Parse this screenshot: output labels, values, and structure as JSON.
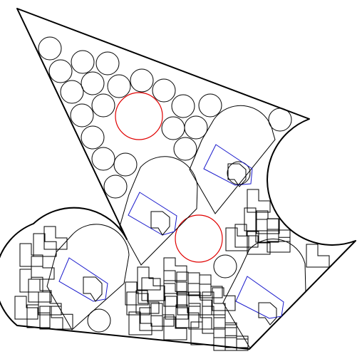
{
  "figure": {
    "description_kind": "geometric packing diagram",
    "colors": {
      "outline": "#000000",
      "highlight_circle": "#e00000",
      "inner_piece": "#1a1acc",
      "background": "#ffffff"
    },
    "legend": []
  }
}
